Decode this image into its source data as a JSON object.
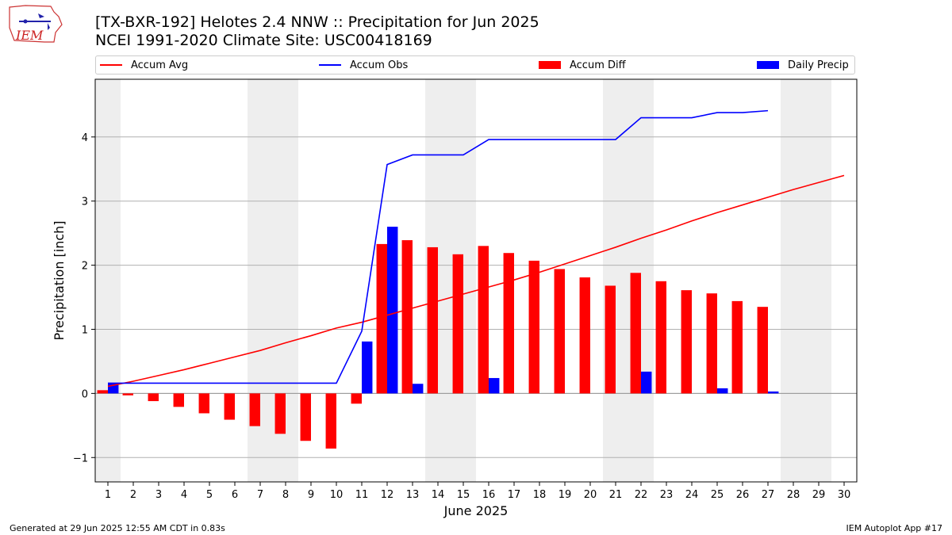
{
  "title_line1": "[TX-BXR-192] Helotes 2.4 NNW :: Precipitation for Jun 2025",
  "title_line2": "NCEI 1991-2020 Climate Site: USC00418169",
  "logo_text": "IEM",
  "footer": {
    "left": "Generated at 29 Jun 2025 12:55 AM CDT in 0.83s",
    "right": "IEM Autoplot App #17"
  },
  "legend": [
    {
      "label": "Accum Avg",
      "kind": "line",
      "color": "#ff0000"
    },
    {
      "label": "Accum Obs",
      "kind": "line",
      "color": "#0000ff"
    },
    {
      "label": "Accum Diff",
      "kind": "bar",
      "color": "#ff0000"
    },
    {
      "label": "Daily Precip",
      "kind": "bar",
      "color": "#0000ff"
    }
  ],
  "chart_data": {
    "type": "bar",
    "xlabel": "June 2025",
    "ylabel": "Precipitation [inch]",
    "xlim": [
      0.5,
      30.5
    ],
    "ylim": [
      -1.38,
      4.9
    ],
    "x_ticks": [
      1,
      2,
      3,
      4,
      5,
      6,
      7,
      8,
      9,
      10,
      11,
      12,
      13,
      14,
      15,
      16,
      17,
      18,
      19,
      20,
      21,
      22,
      23,
      24,
      25,
      26,
      27,
      28,
      29,
      30
    ],
    "y_ticks": [
      -1,
      0,
      1,
      2,
      3,
      4
    ],
    "y_tick_labels": [
      "−1",
      "0",
      "1",
      "2",
      "3",
      "4"
    ],
    "grid": "horizontal",
    "legend_position": "top",
    "weekend_days": [
      1,
      7,
      8,
      14,
      15,
      21,
      22,
      28,
      29
    ],
    "shade_color": "#eeeeee",
    "series": [
      {
        "name": "Accum Avg",
        "kind": "line",
        "color": "#ff0000",
        "x": [
          1,
          2,
          3,
          4,
          5,
          6,
          7,
          8,
          9,
          10,
          11,
          12,
          13,
          14,
          15,
          16,
          17,
          18,
          19,
          20,
          21,
          22,
          23,
          24,
          25,
          26,
          27,
          28,
          29,
          30
        ],
        "values": [
          0.11,
          0.19,
          0.28,
          0.37,
          0.47,
          0.57,
          0.67,
          0.79,
          0.9,
          1.02,
          1.11,
          1.22,
          1.33,
          1.44,
          1.55,
          1.66,
          1.77,
          1.89,
          2.02,
          2.15,
          2.28,
          2.42,
          2.55,
          2.69,
          2.82,
          2.94,
          3.06,
          3.18,
          3.29,
          3.4
        ]
      },
      {
        "name": "Accum Obs",
        "kind": "line",
        "color": "#0000ff",
        "x": [
          1,
          2,
          3,
          4,
          5,
          6,
          7,
          8,
          9,
          10,
          11,
          12,
          13,
          14,
          15,
          16,
          17,
          18,
          19,
          20,
          21,
          22,
          23,
          24,
          25,
          26,
          27
        ],
        "values": [
          0.16,
          0.16,
          0.16,
          0.16,
          0.16,
          0.16,
          0.16,
          0.16,
          0.16,
          0.16,
          0.97,
          3.57,
          3.72,
          3.72,
          3.72,
          3.96,
          3.96,
          3.96,
          3.96,
          3.96,
          3.96,
          4.3,
          4.3,
          4.3,
          4.38,
          4.38,
          4.41
        ]
      },
      {
        "name": "Accum Diff",
        "kind": "bar",
        "color": "#ff0000",
        "x": [
          1,
          2,
          3,
          4,
          5,
          6,
          7,
          8,
          9,
          10,
          11,
          12,
          13,
          14,
          15,
          16,
          17,
          18,
          19,
          20,
          21,
          22,
          23,
          24,
          25,
          26,
          27
        ],
        "values": [
          0.05,
          -0.03,
          -0.12,
          -0.21,
          -0.31,
          -0.41,
          -0.51,
          -0.63,
          -0.74,
          -0.86,
          -0.16,
          2.33,
          2.39,
          2.28,
          2.17,
          2.3,
          2.19,
          2.07,
          1.94,
          1.81,
          1.68,
          1.88,
          1.75,
          1.61,
          1.56,
          1.44,
          1.35
        ]
      },
      {
        "name": "Daily Precip",
        "kind": "bar",
        "color": "#0000ff",
        "x": [
          1,
          11,
          12,
          13,
          16,
          22,
          25,
          27
        ],
        "values": [
          0.16,
          0.81,
          2.6,
          0.15,
          0.24,
          0.34,
          0.08,
          0.03
        ]
      }
    ]
  }
}
